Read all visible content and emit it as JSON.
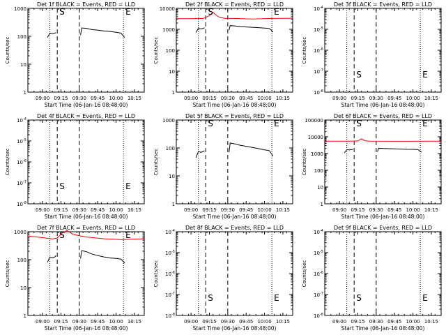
{
  "panel_title_suffix": "BLACK = Events, RED = LLD",
  "ylabel": "Counts/sec",
  "xlabel": "Start Time (06-Jan-16 08:48:00)",
  "x_ticks": [
    "09:00",
    "09:15",
    "09:30",
    "09:45",
    "10:00",
    "10:15"
  ],
  "marker_S": "S",
  "marker_E": "E",
  "colors": {
    "events": "#000000",
    "lld": "#ff0000",
    "axis": "#000000",
    "background": "#ffffff"
  },
  "chart_data": [
    {
      "type": "line",
      "title": "Det 1f",
      "xlim": [
        "08:48",
        "10:23"
      ],
      "yscale": "log",
      "ylim": [
        1,
        1000
      ],
      "y_ticks": [
        "1",
        "10",
        "100",
        "1000"
      ],
      "vlines_dotted": [
        "09:06",
        "10:06"
      ],
      "vlines_dashed": [
        "09:12",
        "09:30"
      ],
      "markers": [
        {
          "label": "S",
          "x": "09:12",
          "y": 1000
        },
        {
          "label": "E",
          "x": "10:06",
          "y": 1000
        }
      ],
      "series": [
        {
          "role": "events",
          "segments": [
            {
              "x": [
                "09:04",
                "09:06",
                "09:08",
                "09:10",
                "09:11"
              ],
              "y": [
                90,
                130,
                125,
                130,
                135
              ]
            },
            {
              "x": [
                "09:31",
                "09:32",
                "09:36",
                "09:40",
                "09:45",
                "09:50",
                "09:55",
                "10:00",
                "10:04",
                "10:07"
              ],
              "y": [
                110,
                200,
                190,
                175,
                165,
                155,
                150,
                140,
                130,
                90
              ]
            }
          ]
        }
      ]
    },
    {
      "type": "line",
      "title": "Det 2f",
      "xlim": [
        "08:48",
        "10:23"
      ],
      "yscale": "log",
      "ylim": [
        1,
        10000
      ],
      "y_ticks": [
        "1",
        "10",
        "100",
        "1000",
        "10000"
      ],
      "vlines_dotted": [
        "09:06",
        "10:06"
      ],
      "vlines_dashed": [
        "09:12",
        "09:30"
      ],
      "markers": [
        {
          "label": "S",
          "x": "09:12",
          "y": 10000
        },
        {
          "label": "E",
          "x": "10:06",
          "y": 10000
        }
      ],
      "series": [
        {
          "role": "events",
          "segments": [
            {
              "x": [
                "09:04",
                "09:06",
                "09:08",
                "09:10",
                "09:11"
              ],
              "y": [
                700,
                1100,
                1050,
                1100,
                1200
              ]
            },
            {
              "x": [
                "09:31",
                "09:32",
                "09:36",
                "09:40",
                "09:45",
                "09:50",
                "09:55",
                "10:00",
                "10:04",
                "10:07"
              ],
              "y": [
                900,
                1500,
                1450,
                1350,
                1300,
                1250,
                1200,
                1150,
                1100,
                750
              ]
            }
          ]
        },
        {
          "role": "lld",
          "segments": [
            {
              "x": [
                "08:48",
                "09:00",
                "09:10",
                "09:15",
                "09:18",
                "09:21",
                "09:24",
                "09:28",
                "09:35",
                "09:50",
                "10:05",
                "10:23"
              ],
              "y": [
                3200,
                3200,
                3300,
                4500,
                6500,
                4500,
                3600,
                3300,
                3300,
                3100,
                3300,
                3400
              ]
            }
          ]
        }
      ]
    },
    {
      "type": "line",
      "title": "Det 3f",
      "xlim": [
        "08:48",
        "10:23"
      ],
      "yscale": "log",
      "ylim": [
        1e-08,
        0.0001
      ],
      "y_ticks": [
        "10^-8",
        "10^-7",
        "10^-6",
        "10^-5",
        "10^-4"
      ],
      "vlines_dotted": [
        "09:06",
        "10:06"
      ],
      "vlines_dashed": [
        "09:12",
        "09:30"
      ],
      "markers": [
        {
          "label": "S",
          "x": "09:12",
          "y": 1e-07
        },
        {
          "label": "E",
          "x": "10:06",
          "y": 1e-07
        }
      ],
      "series": []
    },
    {
      "type": "line",
      "title": "Det 4f",
      "xlim": [
        "08:48",
        "10:23"
      ],
      "yscale": "log",
      "ylim": [
        1e-08,
        0.0001
      ],
      "y_ticks": [
        "10^-8",
        "10^-7",
        "10^-6",
        "10^-5",
        "10^-4"
      ],
      "vlines_dotted": [
        "09:06",
        "10:06"
      ],
      "vlines_dashed": [
        "09:12",
        "09:30"
      ],
      "markers": [
        {
          "label": "S",
          "x": "09:12",
          "y": 1e-07
        },
        {
          "label": "E",
          "x": "10:06",
          "y": 1e-07
        }
      ],
      "series": []
    },
    {
      "type": "line",
      "title": "Det 5f",
      "xlim": [
        "08:48",
        "10:23"
      ],
      "yscale": "log",
      "ylim": [
        1,
        1000
      ],
      "y_ticks": [
        "1",
        "10",
        "100",
        "1000"
      ],
      "vlines_dotted": [
        "09:06",
        "10:06"
      ],
      "vlines_dashed": [
        "09:12",
        "09:30"
      ],
      "markers": [
        {
          "label": "S",
          "x": "09:12",
          "y": 1000
        },
        {
          "label": "E",
          "x": "10:06",
          "y": 1000
        }
      ],
      "series": [
        {
          "role": "events",
          "segments": [
            {
              "x": [
                "09:04",
                "09:06",
                "09:08",
                "09:10",
                "09:11"
              ],
              "y": [
                45,
                75,
                70,
                75,
                80
              ]
            },
            {
              "x": [
                "09:31",
                "09:32",
                "09:36",
                "09:40",
                "09:45",
                "09:50",
                "09:55",
                "10:00",
                "10:04",
                "10:07"
              ],
              "y": [
                70,
                150,
                140,
                125,
                115,
                105,
                95,
                85,
                80,
                50
              ]
            }
          ]
        }
      ]
    },
    {
      "type": "line",
      "title": "Det 6f",
      "xlim": [
        "08:48",
        "10:23"
      ],
      "yscale": "log",
      "ylim": [
        1,
        100000
      ],
      "y_ticks": [
        "1",
        "10",
        "100",
        "1000",
        "10000",
        "100000"
      ],
      "vlines_dotted": [
        "09:06",
        "10:06"
      ],
      "vlines_dashed": [
        "09:12",
        "09:30"
      ],
      "markers": [
        {
          "label": "S",
          "x": "09:12",
          "y": 100000
        },
        {
          "label": "E",
          "x": "10:06",
          "y": 100000
        }
      ],
      "series": [
        {
          "role": "events",
          "segments": [
            {
              "x": [
                "09:04",
                "09:06",
                "09:08",
                "09:10",
                "09:11"
              ],
              "y": [
                1100,
                1700,
                1650,
                1700,
                1800
              ]
            },
            {
              "x": [
                "09:31",
                "09:32",
                "09:36",
                "09:40",
                "09:45",
                "09:50",
                "09:55",
                "10:00",
                "10:04",
                "10:07"
              ],
              "y": [
                1300,
                2100,
                2000,
                1950,
                1900,
                1850,
                1800,
                1780,
                1750,
                1200
              ]
            }
          ]
        },
        {
          "role": "lld",
          "segments": [
            {
              "x": [
                "08:48",
                "09:10",
                "09:15",
                "09:18",
                "09:21",
                "09:25",
                "09:40",
                "10:00",
                "10:23"
              ],
              "y": [
                5500,
                5500,
                5700,
                7500,
                5800,
                5500,
                5400,
                5400,
                5500
              ]
            }
          ]
        }
      ]
    },
    {
      "type": "line",
      "title": "Det 7f",
      "xlim": [
        "08:48",
        "10:23"
      ],
      "yscale": "log",
      "ylim": [
        1,
        1000
      ],
      "y_ticks": [
        "1",
        "10",
        "100",
        "1000"
      ],
      "vlines_dotted": [
        "09:06",
        "10:06"
      ],
      "vlines_dashed": [
        "09:12",
        "09:30"
      ],
      "markers": [
        {
          "label": "S",
          "x": "09:12",
          "y": 1000
        },
        {
          "label": "E",
          "x": "10:06",
          "y": 1000
        }
      ],
      "series": [
        {
          "role": "events",
          "segments": [
            {
              "x": [
                "09:04",
                "09:06",
                "09:08",
                "09:10",
                "09:11"
              ],
              "y": [
                80,
                125,
                115,
                125,
                140
              ]
            },
            {
              "x": [
                "09:31",
                "09:32",
                "09:36",
                "09:40",
                "09:45",
                "09:50",
                "09:55",
                "10:00",
                "10:04",
                "10:07"
              ],
              "y": [
                110,
                210,
                190,
                160,
                140,
                125,
                115,
                110,
                105,
                75
              ]
            }
          ]
        },
        {
          "role": "lld",
          "segments": [
            {
              "x": [
                "08:48",
                "08:55",
                "09:02",
                "09:08",
                "09:12",
                "09:16",
                "09:20",
                "09:25",
                "09:35",
                "09:50",
                "10:05",
                "10:23"
              ],
              "y": [
                700,
                650,
                600,
                550,
                600,
                900,
                1100,
                800,
                650,
                560,
                520,
                560
              ]
            }
          ]
        }
      ]
    },
    {
      "type": "line",
      "title": "Det 8f",
      "xlim": [
        "08:48",
        "10:23"
      ],
      "yscale": "log",
      "ylim": [
        1e-08,
        0.0001
      ],
      "y_ticks": [
        "10^-8",
        "10^-7",
        "10^-6",
        "10^-5",
        "10^-4"
      ],
      "vlines_dotted": [
        "09:06",
        "10:06"
      ],
      "vlines_dashed": [
        "09:12",
        "09:30"
      ],
      "markers": [
        {
          "label": "S",
          "x": "09:12",
          "y": 1e-07
        },
        {
          "label": "E",
          "x": "10:06",
          "y": 1e-07
        }
      ],
      "series": []
    },
    {
      "type": "line",
      "title": "Det 9f",
      "xlim": [
        "08:48",
        "10:23"
      ],
      "yscale": "log",
      "ylim": [
        1e-08,
        0.0001
      ],
      "y_ticks": [
        "10^-8",
        "10^-7",
        "10^-6",
        "10^-5",
        "10^-4"
      ],
      "vlines_dotted": [
        "09:06",
        "10:06"
      ],
      "vlines_dashed": [
        "09:12",
        "09:30"
      ],
      "markers": [
        {
          "label": "S",
          "x": "09:12",
          "y": 1e-07
        },
        {
          "label": "E",
          "x": "10:06",
          "y": 1e-07
        }
      ],
      "series": []
    }
  ]
}
